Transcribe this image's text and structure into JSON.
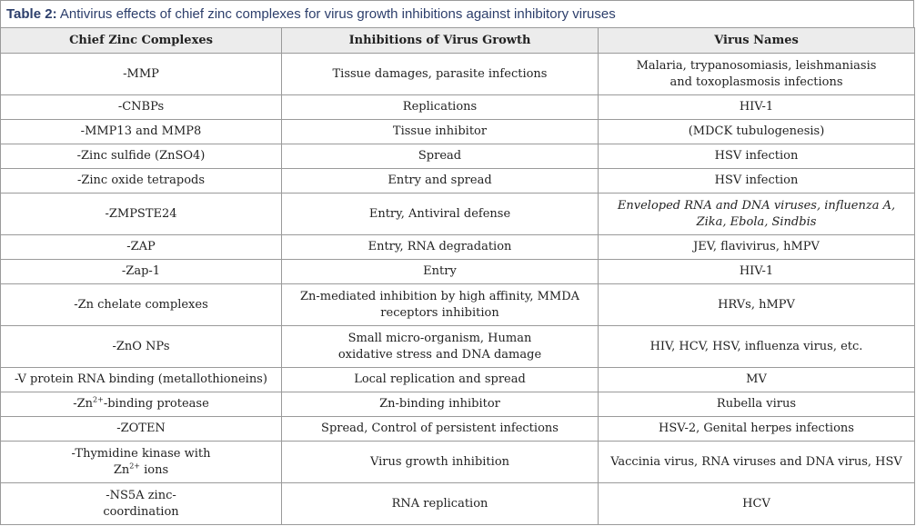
{
  "caption": {
    "label": "Table 2:",
    "text": " Antivirus effects of chief zinc complexes for virus growth inhibitions against inhibitory viruses"
  },
  "headers": [
    "Chief Zinc Complexes",
    "Inhibitions of Virus Growth",
    "Virus Names"
  ],
  "rows": [
    {
      "complex": "-MMP",
      "inhibition": "Tissue damages, parasite infections",
      "viruses": "Malaria, trypanosomiasis, leishmaniasis and toxoplasmosis infections"
    },
    {
      "complex": "-CNBPs",
      "inhibition": "Replications",
      "viruses": "HIV-1"
    },
    {
      "complex": "-MMP13 and MMP8",
      "inhibition": "Tissue inhibitor",
      "viruses": "(MDCK tubulogenesis)"
    },
    {
      "complex": "-Zinc sulfide (ZnSO4)",
      "inhibition": "Spread",
      "viruses": "HSV infection"
    },
    {
      "complex": "-Zinc oxide tetrapods",
      "inhibition": "Entry and spread",
      "viruses": "HSV infection"
    },
    {
      "complex": "-ZMPSTE24",
      "inhibition": "Entry, Antiviral defense",
      "viruses": "Enveloped RNA and DNA viruses, influenza A, Zika, Ebola, Sindbis"
    },
    {
      "complex": "-ZAP",
      "inhibition": "Entry, RNA degradation",
      "viruses": "JEV, flavivirus, hMPV"
    },
    {
      "complex": "-Zap-1",
      "inhibition": "Entry",
      "viruses": "HIV-1"
    },
    {
      "complex": "-Zn chelate complexes",
      "inhibition": "Zn-mediated inhibition by high affinity, MMDA receptors inhibition",
      "viruses": "HRVs, hMPV"
    },
    {
      "complex": "-ZnO NPs",
      "inhibition_line1": "Small micro-organism, Human",
      "inhibition_line2": "oxidative stress and DNA damage",
      "viruses": "HIV, HCV, HSV, influenza virus, etc."
    },
    {
      "complex": "-V protein RNA binding (metallothioneins)",
      "inhibition": "Local replication and spread",
      "viruses": "MV"
    },
    {
      "complex_prefix": "-Zn",
      "complex_sup": "2+",
      "complex_suffix": "-binding protease",
      "inhibition": "Zn-binding inhibitor",
      "viruses": "Rubella virus"
    },
    {
      "complex": "-ZOTEN",
      "inhibition": "Spread, Control of persistent infections",
      "viruses": "HSV-2, Genital herpes infections"
    },
    {
      "complex_line1": "-Thymidine kinase with",
      "complex_line2_prefix": "Zn",
      "complex_line2_sup": "2+",
      "complex_line2_suffix": " ions",
      "inhibition": "Virus growth inhibition",
      "viruses": "Vaccinia virus, RNA viruses and DNA virus, HSV"
    },
    {
      "complex_line1": "-NS5A zinc-",
      "complex_line2": "coordination",
      "inhibition": "RNA replication",
      "viruses": "HCV"
    }
  ]
}
